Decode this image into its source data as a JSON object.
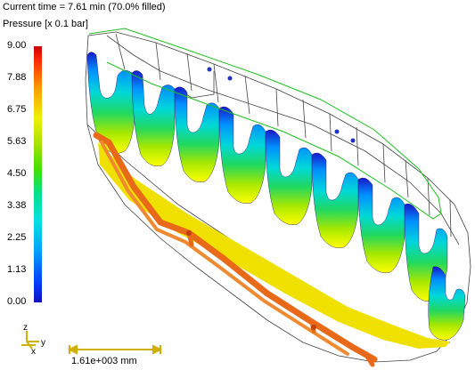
{
  "header": {
    "time_line": "Current time = 7.61 min (70.0% filled)",
    "quantity_line": "Pressure [x 0.1 bar]"
  },
  "legend": {
    "ticks": [
      "9.00",
      "7.88",
      "6.75",
      "5.63",
      "4.50",
      "3.38",
      "2.25",
      "1.13",
      "0.00"
    ]
  },
  "axes": {
    "z": "z",
    "y": "y",
    "x": "x"
  },
  "scale_bar": {
    "label": "1.61e+003 mm"
  },
  "colors": {
    "outline": "#333333",
    "runner": "#e86a18",
    "green_line": "#20c020",
    "gate": "#2030c0"
  }
}
